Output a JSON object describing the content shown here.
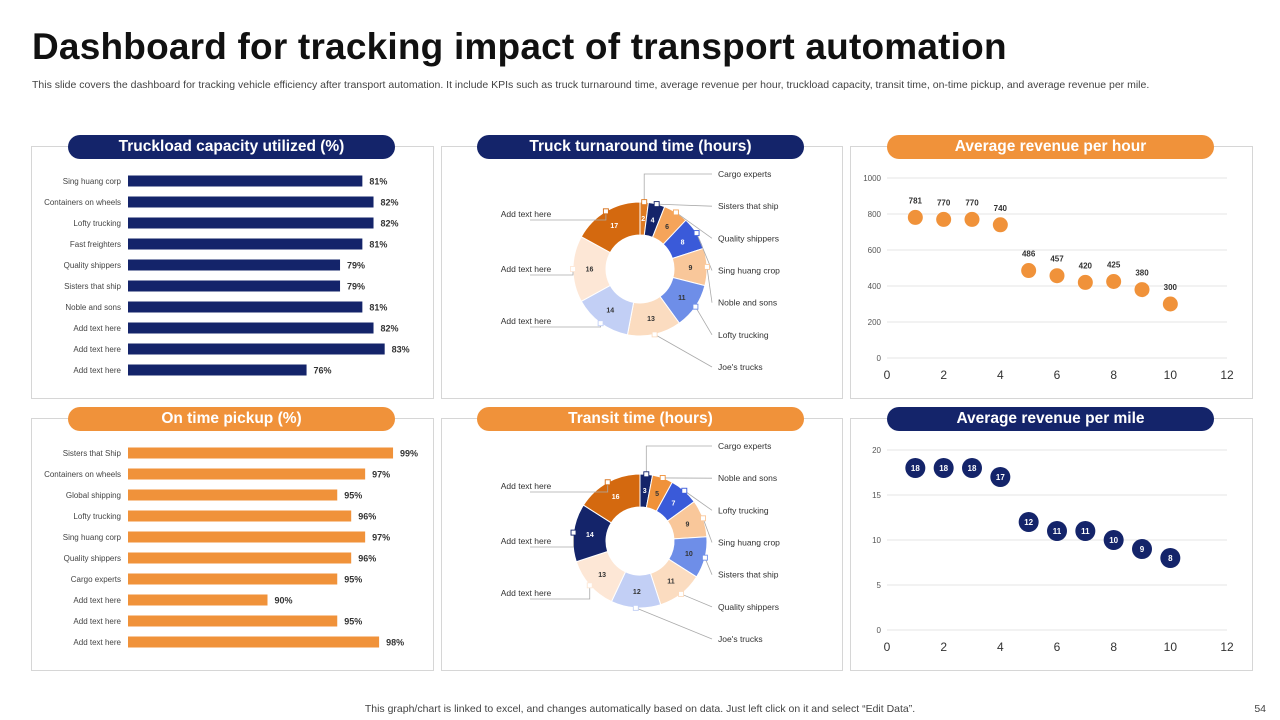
{
  "title": "Dashboard for tracking impact of transport automation",
  "subtitle": "This slide covers the dashboard for tracking vehicle efficiency after transport automation. It include KPIs such as truck turnaround time, average revenue per hour, truckload capacity, transit time, on-time pickup, and average revenue per mile.",
  "footer": "This graph/chart is linked to excel,  and changes automatically based on data. Just left click on it and select “Edit Data”.",
  "page_number": "54",
  "colors": {
    "navy": "#14246a",
    "orange": "#f0923a",
    "grid": "#e6e6e6"
  },
  "chart_data": [
    {
      "id": "truckload",
      "type": "bar",
      "title": "Truckload capacity utilized (%)",
      "orientation": "horizontal",
      "color": "#14246a",
      "categories": [
        "Sing huang corp",
        "Containers on wheels",
        "Lofty trucking",
        "Fast freighters",
        "Quality shippers",
        "Sisters that ship",
        "Noble and sons",
        "Add text here",
        "Add text here",
        "Add text here"
      ],
      "values": [
        81,
        82,
        82,
        81,
        79,
        79,
        81,
        82,
        83,
        76
      ],
      "labels": [
        "81%",
        "82%",
        "82%",
        "81%",
        "79%",
        "79%",
        "81%",
        "82%",
        "83%",
        "76%"
      ],
      "xlim": [
        60,
        85
      ]
    },
    {
      "id": "turnaround",
      "type": "pie",
      "donut": true,
      "title": "Truck turnaround time (hours)",
      "categories": [
        "Cargo experts",
        "Sisters that ship",
        "Quality shippers",
        "Sing huang crop",
        "Noble and sons",
        "Lofty trucking",
        "Joe's trucks",
        "Add text here",
        "Add text here",
        "Add text here"
      ],
      "values": [
        2,
        4,
        6,
        8,
        9,
        11,
        13,
        14,
        16,
        17
      ],
      "colors": [
        "#e07b22",
        "#14246a",
        "#f5a45a",
        "#3a5ad9",
        "#f9c79a",
        "#6e8ee8",
        "#fbdcc0",
        "#c2cff5",
        "#fde7d6",
        "#d4690f"
      ],
      "label_side": [
        "right",
        "right",
        "right",
        "right",
        "right",
        "right",
        "right",
        "left",
        "left",
        "left"
      ]
    },
    {
      "id": "rev_hour",
      "type": "scatter",
      "title": "Average revenue per hour",
      "color": "#f0923a",
      "x": [
        1,
        2,
        3,
        4,
        5,
        6,
        7,
        8,
        9,
        10
      ],
      "y": [
        781,
        770,
        770,
        740,
        486,
        457,
        420,
        425,
        380,
        300
      ],
      "labels": [
        "781",
        "770",
        "770",
        "740",
        "486",
        "457",
        "420",
        "425",
        "380",
        "300"
      ],
      "xlim": [
        0,
        12
      ],
      "ylim": [
        0,
        1000
      ],
      "xticks": [
        0,
        2,
        4,
        6,
        8,
        10,
        12
      ],
      "yticks": [
        0,
        200,
        400,
        600,
        800,
        1000
      ],
      "label_position": "above"
    },
    {
      "id": "ontime",
      "type": "bar",
      "title": "On time pickup (%)",
      "orientation": "horizontal",
      "color": "#f0923a",
      "categories": [
        "Sisters that Ship",
        "Containers on wheels",
        "Global shipping",
        "Lofty trucking",
        "Sing huang corp",
        "Quality shippers",
        "Cargo experts",
        "Add text here",
        "Add text here",
        "Add text here"
      ],
      "values": [
        99,
        97,
        95,
        96,
        97,
        96,
        95,
        90,
        95,
        98
      ],
      "labels": [
        "99%",
        "97%",
        "95%",
        "96%",
        "97%",
        "96%",
        "95%",
        "90%",
        "95%",
        "98%"
      ],
      "xlim": [
        80,
        100
      ]
    },
    {
      "id": "transit",
      "type": "pie",
      "donut": true,
      "title": "Transit time (hours)",
      "categories": [
        "Cargo experts",
        "Noble and sons",
        "Lofty trucking",
        "Sing huang crop",
        "Sisters that ship",
        "Quality shippers",
        "Joe's trucks",
        "Add text here",
        "Add text here",
        "Add text here"
      ],
      "values": [
        3,
        5,
        7,
        9,
        10,
        11,
        12,
        13,
        14,
        16
      ],
      "colors": [
        "#14246a",
        "#f0923a",
        "#3a5ad9",
        "#f9c79a",
        "#6e8ee8",
        "#fbdcc0",
        "#c2cff5",
        "#fde7d6",
        "#14246a",
        "#d4690f"
      ],
      "label_side": [
        "right",
        "right",
        "right",
        "right",
        "right",
        "right",
        "right",
        "left",
        "left",
        "left"
      ]
    },
    {
      "id": "rev_mile",
      "type": "scatter",
      "title": "Average revenue per mile",
      "color": "#14246a",
      "x": [
        1,
        2,
        3,
        4,
        5,
        6,
        7,
        8,
        9,
        10
      ],
      "y": [
        18,
        18,
        18,
        17,
        12,
        11,
        11,
        10,
        9,
        8
      ],
      "labels": [
        "18",
        "18",
        "18",
        "17",
        "12",
        "11",
        "11",
        "10",
        "9",
        "8"
      ],
      "xlim": [
        0,
        12
      ],
      "ylim": [
        0,
        20
      ],
      "xticks": [
        0,
        2,
        4,
        6,
        8,
        10,
        12
      ],
      "yticks": [
        0,
        5,
        10,
        15,
        20
      ],
      "label_position": "inside"
    }
  ]
}
